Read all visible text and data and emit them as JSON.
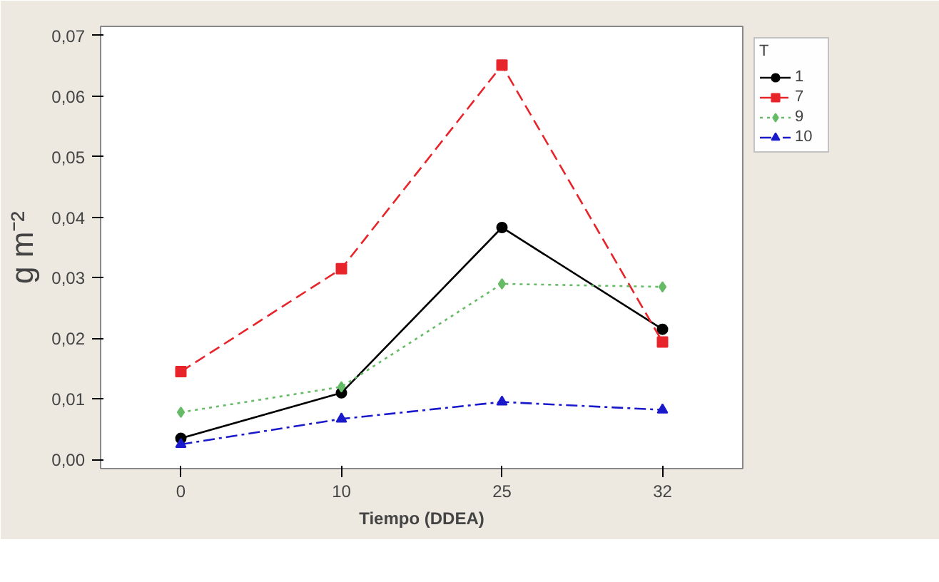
{
  "chart_data": {
    "type": "line",
    "xlabel": "Tiempo (DDEA)",
    "ylabel": "g m⁻²",
    "legend_title": "T",
    "categories": [
      "0",
      "10",
      "25",
      "32"
    ],
    "series": [
      {
        "name": "1",
        "color": "#000000",
        "values": [
          0.0035,
          0.011,
          0.0383,
          0.0215
        ],
        "marker": "circle",
        "line_style": "solid"
      },
      {
        "name": "7",
        "color": "#e8242b",
        "values": [
          0.0145,
          0.0315,
          0.0651,
          0.0194
        ],
        "marker": "square",
        "line_style": "dashed"
      },
      {
        "name": "9",
        "color": "#66bb66",
        "values": [
          0.0078,
          0.012,
          0.029,
          0.0285
        ],
        "marker": "diamond",
        "line_style": "dotted"
      },
      {
        "name": "10",
        "color": "#1a1acc",
        "values": [
          0.0025,
          0.0067,
          0.0095,
          0.0082
        ],
        "marker": "triangle",
        "line_style": "dashdot"
      }
    ],
    "ylim": [
      -0.0015,
      0.0715
    ],
    "yticks": [
      {
        "value": 0,
        "label": "0,00"
      },
      {
        "value": 0.01,
        "label": "0,01"
      },
      {
        "value": 0.02,
        "label": "0,02"
      },
      {
        "value": 0.03,
        "label": "0,03"
      },
      {
        "value": 0.04,
        "label": "0,04"
      },
      {
        "value": 0.05,
        "label": "0,05"
      },
      {
        "value": 0.06,
        "label": "0,06"
      },
      {
        "value": 0.07,
        "label": "0,07"
      }
    ],
    "legend": "top right",
    "grid": false
  }
}
